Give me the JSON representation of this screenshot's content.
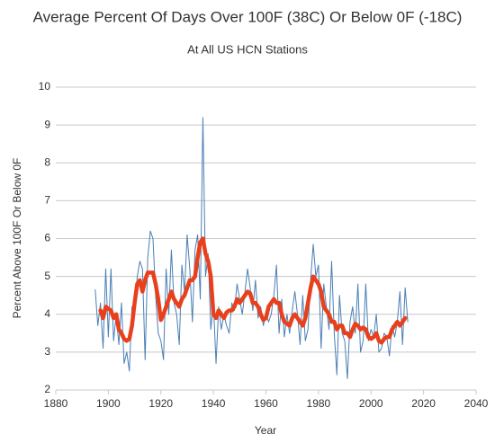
{
  "chart_data": {
    "type": "line",
    "title": "Average Percent Of Days Over 100F (38C) Or Below 0F (-18C)",
    "subtitle": "At All US HCN Stations",
    "y_label": "Percent Above 100F Or Below 0F",
    "x_label": "Year",
    "x": [
      1895,
      1896,
      1897,
      1898,
      1899,
      1900,
      1901,
      1902,
      1903,
      1904,
      1905,
      1906,
      1907,
      1908,
      1909,
      1910,
      1911,
      1912,
      1913,
      1914,
      1915,
      1916,
      1917,
      1918,
      1919,
      1920,
      1921,
      1922,
      1923,
      1924,
      1925,
      1926,
      1927,
      1928,
      1929,
      1930,
      1931,
      1932,
      1933,
      1934,
      1935,
      1936,
      1937,
      1938,
      1939,
      1940,
      1941,
      1942,
      1943,
      1944,
      1945,
      1946,
      1947,
      1948,
      1949,
      1950,
      1951,
      1952,
      1953,
      1954,
      1955,
      1956,
      1957,
      1958,
      1959,
      1960,
      1961,
      1962,
      1963,
      1964,
      1965,
      1966,
      1967,
      1968,
      1969,
      1970,
      1971,
      1972,
      1973,
      1974,
      1975,
      1976,
      1977,
      1978,
      1979,
      1980,
      1981,
      1982,
      1983,
      1984,
      1985,
      1986,
      1987,
      1988,
      1989,
      1990,
      1991,
      1992,
      1993,
      1994,
      1995,
      1996,
      1997,
      1998,
      1999,
      2000,
      2001,
      2002,
      2003,
      2004,
      2005,
      2006,
      2007,
      2008,
      2009,
      2010,
      2011,
      2012,
      2013,
      2014
    ],
    "series": [
      {
        "color": "#4a7fb5",
        "width": 1,
        "values": [
          4.65,
          3.7,
          4.3,
          3.1,
          5.2,
          3.4,
          5.2,
          3.3,
          4.0,
          3.2,
          4.3,
          2.7,
          3.0,
          2.5,
          4.2,
          4.0,
          5.0,
          5.4,
          5.2,
          2.8,
          5.5,
          6.2,
          6.0,
          4.5,
          3.5,
          3.3,
          2.8,
          5.2,
          4.0,
          5.7,
          4.3,
          4.0,
          3.2,
          5.3,
          4.6,
          6.1,
          5.2,
          3.8,
          5.7,
          6.1,
          4.4,
          9.2,
          5.0,
          5.6,
          3.6,
          4.3,
          2.7,
          4.2,
          3.6,
          4.0,
          3.7,
          3.5,
          4.3,
          4.1,
          4.8,
          4.4,
          4.0,
          4.6,
          5.2,
          4.7,
          4.1,
          4.9,
          3.9,
          4.2,
          3.7,
          4.0,
          3.8,
          4.0,
          4.5,
          5.3,
          3.5,
          4.4,
          3.4,
          4.0,
          3.5,
          4.1,
          4.6,
          4.0,
          3.2,
          4.5,
          3.3,
          3.6,
          4.9,
          5.85,
          5.0,
          5.3,
          3.1,
          4.8,
          4.2,
          3.6,
          5.4,
          3.5,
          2.4,
          4.5,
          3.5,
          3.3,
          2.3,
          3.8,
          4.2,
          3.5,
          4.8,
          3.0,
          3.3,
          4.8,
          3.3,
          3.6,
          3.4,
          4.0,
          3.0,
          3.1,
          3.5,
          3.4,
          2.9,
          3.7,
          3.4,
          3.8,
          4.6,
          3.2,
          4.7,
          3.8
        ]
      },
      {
        "color": "#e8401c",
        "width": 4.5,
        "values": [
          null,
          null,
          4.1,
          3.9,
          4.2,
          4.15,
          4.1,
          3.9,
          4.0,
          3.6,
          3.5,
          3.35,
          3.3,
          3.35,
          3.7,
          4.3,
          4.8,
          4.9,
          4.6,
          4.9,
          5.1,
          5.1,
          5.1,
          4.8,
          4.4,
          3.85,
          4.0,
          4.2,
          4.4,
          4.6,
          4.4,
          4.3,
          4.2,
          4.4,
          4.5,
          4.7,
          4.9,
          4.9,
          5.0,
          5.5,
          5.9,
          6.0,
          5.6,
          5.4,
          5.0,
          4.0,
          3.9,
          4.1,
          4.0,
          3.9,
          4.05,
          4.1,
          4.1,
          4.2,
          4.4,
          4.3,
          4.4,
          4.5,
          4.6,
          4.55,
          4.3,
          4.3,
          4.2,
          4.0,
          3.85,
          3.9,
          4.2,
          4.3,
          4.4,
          4.3,
          4.3,
          4.0,
          3.8,
          3.75,
          3.7,
          3.9,
          4.0,
          3.9,
          3.8,
          3.7,
          3.9,
          4.3,
          4.7,
          5.0,
          4.9,
          4.8,
          4.6,
          4.2,
          4.1,
          4.0,
          3.8,
          3.8,
          3.6,
          3.7,
          3.7,
          3.5,
          3.5,
          3.4,
          3.6,
          3.75,
          3.7,
          3.6,
          3.65,
          3.6,
          3.4,
          3.35,
          3.4,
          3.5,
          3.3,
          3.25,
          3.35,
          3.4,
          3.4,
          3.6,
          3.7,
          3.8,
          3.7,
          3.8,
          3.9,
          null
        ]
      }
    ],
    "xlim": [
      1880,
      2040
    ],
    "xticks": [
      1880,
      1900,
      1920,
      1940,
      1960,
      1980,
      2000,
      2020,
      2040
    ],
    "ylim": [
      2,
      10
    ],
    "yticks": [
      2,
      3,
      4,
      5,
      6,
      7,
      8,
      9,
      10
    ],
    "grid": true
  }
}
